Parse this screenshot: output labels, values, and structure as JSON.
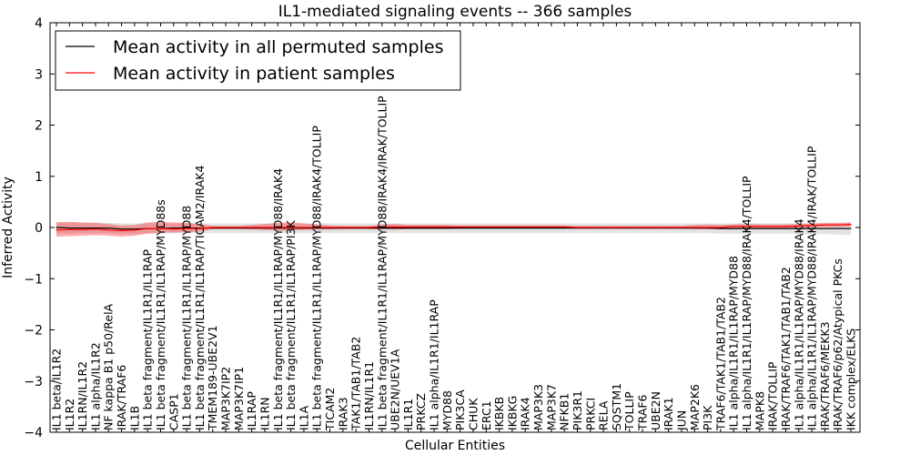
{
  "chart_data": {
    "type": "line",
    "title": "IL1-mediated signaling events -- 366 samples",
    "xlabel": "Cellular Entities",
    "ylabel": "Inferred Activity",
    "ylim": [
      -4,
      4
    ],
    "y_ticks": [
      -4,
      -3,
      -2,
      -1,
      0,
      1,
      2,
      3,
      4
    ],
    "grid": false,
    "legend_position": "top-left",
    "categories": [
      "IL1 beta/IL1R2",
      "IL1R2",
      "IL1RN/IL1R2",
      "IL1 alpha/IL1R2",
      "NF kappa B1 p50/RelA",
      "IRAK/TRAF6",
      "IL1B",
      "IL1 beta fragment/IL1R1/IL1RAP",
      "IL1 beta fragment/IL1R1/IL1RAP/MYD88s",
      "CASP1",
      "IL1 beta fragment/IL1R1/IL1RAP/MYD88",
      "IL1 beta fragment/IL1R1/IL1RAP/TICAM2/IRAK4",
      "TMEM189-UBE2V1",
      "MAP3K7IP2",
      "MAP3K7IP1",
      "IL1RAP",
      "IL1RN",
      "IL1 beta fragment/IL1R1/IL1RAP/MYD88/IRAK4",
      "IL1 beta fragment/IL1R1/IL1RAP/PI3K",
      "IL1A",
      "IL1 beta fragment/IL1R1/IL1RAP/MYD88/IRAK4/TOLLIP",
      "TICAM2",
      "IRAK3",
      "TAK1/TAB1/TAB2",
      "IL1RN/IL1R1",
      "IL1 beta fragment/IL1R1/IL1RAP/MYD88/IRAK4/IRAK/TOLLIP",
      "UBE2N/UEV1A",
      "IL1R1",
      "PRKCZ",
      "IL1 alpha/IL1R1/IL1RAP",
      "MYD88",
      "PIK3CA",
      "CHUK",
      "ERC1",
      "IKBKB",
      "IKBKG",
      "IRAK4",
      "MAP3K3",
      "MAP3K7",
      "NFKB1",
      "PIK3R1",
      "PRKCI",
      "RELA",
      "SQSTM1",
      "TOLLIP",
      "TRAF6",
      "UBE2N",
      "IRAK1",
      "JUN",
      "MAP2K6",
      "PI3K",
      "TRAF6/TAK1/TAB1/TAB2",
      "IL1 alpha/IL1R1/IL1RAP/MYD88",
      "IL1 alpha/IL1R1/IL1RAP/MYD88/IRAK4/TOLLIP",
      "MAPK8",
      "IRAK/TOLLIP",
      "IRAK/TRAF6/TAK1/TAB1/TAB2",
      "IL1 alpha/IL1R1/IL1RAP/MYD88/IRAK4",
      "IL1 alpha/IL1R1/IL1RAP/MYD88/IRAK4/IRAK/TOLLIP",
      "IRAK/TRAF6/MEKK3",
      "IRAK/TRAF6/p62/Atypical PKCs",
      "IKK complex/ELKS"
    ],
    "series": [
      {
        "name": "Mean activity in all permuted samples",
        "color": "#000000",
        "values": [
          0.0,
          -0.01,
          -0.01,
          -0.01,
          -0.01,
          -0.03,
          -0.03,
          -0.02,
          -0.02,
          -0.01,
          -0.01,
          -0.01,
          -0.01,
          -0.01,
          -0.01,
          -0.01,
          -0.01,
          -0.01,
          -0.01,
          -0.01,
          -0.01,
          -0.01,
          -0.01,
          -0.01,
          -0.01,
          -0.01,
          -0.01,
          -0.01,
          -0.01,
          -0.01,
          -0.01,
          -0.01,
          -0.01,
          -0.01,
          -0.01,
          -0.01,
          -0.01,
          -0.01,
          -0.01,
          -0.01,
          -0.01,
          -0.01,
          -0.01,
          -0.01,
          -0.01,
          -0.01,
          -0.01,
          -0.01,
          -0.01,
          -0.01,
          -0.01,
          -0.02,
          -0.02,
          -0.02,
          -0.02,
          -0.02,
          -0.02,
          -0.02,
          -0.02,
          -0.02,
          -0.02,
          -0.02
        ],
        "band_lower": [
          -0.12,
          -0.12,
          -0.11,
          -0.11,
          -0.11,
          -0.13,
          -0.13,
          -0.12,
          -0.12,
          -0.11,
          -0.11,
          -0.11,
          -0.11,
          -0.11,
          -0.11,
          -0.11,
          -0.11,
          -0.11,
          -0.11,
          -0.11,
          -0.11,
          -0.11,
          -0.11,
          -0.11,
          -0.11,
          -0.11,
          -0.11,
          -0.11,
          -0.11,
          -0.11,
          -0.11,
          -0.11,
          -0.11,
          -0.11,
          -0.11,
          -0.11,
          -0.11,
          -0.11,
          -0.11,
          -0.11,
          -0.11,
          -0.11,
          -0.11,
          -0.11,
          -0.11,
          -0.11,
          -0.11,
          -0.11,
          -0.11,
          -0.11,
          -0.11,
          -0.12,
          -0.12,
          -0.12,
          -0.12,
          -0.12,
          -0.12,
          -0.13,
          -0.13,
          -0.13,
          -0.14,
          -0.15
        ],
        "band_upper": [
          0.1,
          0.1,
          0.09,
          0.09,
          0.09,
          0.08,
          0.08,
          0.08,
          0.08,
          0.08,
          0.08,
          0.08,
          0.08,
          0.08,
          0.08,
          0.08,
          0.08,
          0.08,
          0.08,
          0.08,
          0.08,
          0.08,
          0.08,
          0.08,
          0.08,
          0.08,
          0.08,
          0.08,
          0.08,
          0.08,
          0.08,
          0.08,
          0.08,
          0.08,
          0.08,
          0.08,
          0.08,
          0.08,
          0.08,
          0.08,
          0.08,
          0.08,
          0.08,
          0.08,
          0.08,
          0.08,
          0.08,
          0.08,
          0.08,
          0.08,
          0.08,
          0.08,
          0.08,
          0.08,
          0.08,
          0.08,
          0.08,
          0.08,
          0.08,
          0.08,
          0.08,
          0.08
        ]
      },
      {
        "name": "Mean activity in patient samples",
        "color": "#ff0000",
        "values": [
          -0.05,
          -0.04,
          -0.04,
          -0.03,
          -0.05,
          -0.06,
          -0.05,
          -0.02,
          -0.02,
          -0.03,
          -0.02,
          -0.02,
          0.0,
          0.0,
          0.0,
          0.0,
          0.0,
          0.0,
          0.0,
          0.0,
          0.0,
          0.0,
          0.0,
          0.0,
          0.0,
          0.01,
          0.01,
          0.01,
          0.01,
          0.01,
          0.01,
          0.01,
          0.01,
          0.01,
          0.01,
          0.01,
          0.01,
          0.01,
          0.01,
          0.01,
          0.0,
          0.0,
          0.0,
          0.0,
          0.0,
          0.0,
          0.0,
          0.0,
          0.0,
          0.0,
          0.0,
          0.0,
          0.02,
          0.02,
          0.02,
          0.02,
          0.02,
          0.03,
          0.04,
          0.05,
          0.05,
          0.06
        ],
        "band_lower": [
          -0.18,
          -0.17,
          -0.16,
          -0.15,
          -0.16,
          -0.18,
          -0.16,
          -0.12,
          -0.1,
          -0.1,
          -0.09,
          -0.08,
          -0.03,
          -0.03,
          -0.03,
          -0.04,
          -0.05,
          -0.06,
          -0.06,
          -0.05,
          -0.04,
          -0.04,
          -0.03,
          -0.03,
          -0.03,
          -0.04,
          -0.04,
          -0.03,
          -0.03,
          -0.03,
          -0.03,
          -0.02,
          -0.02,
          -0.02,
          -0.02,
          -0.02,
          -0.02,
          -0.02,
          -0.02,
          -0.02,
          -0.02,
          -0.02,
          -0.02,
          -0.02,
          -0.02,
          -0.02,
          -0.02,
          -0.02,
          -0.02,
          -0.03,
          -0.03,
          -0.03,
          -0.03,
          -0.03,
          -0.02,
          -0.02,
          -0.02,
          -0.01,
          0.0,
          0.01,
          0.01,
          0.02
        ],
        "band_upper": [
          0.1,
          0.11,
          0.1,
          0.09,
          0.07,
          0.04,
          0.05,
          0.1,
          0.11,
          0.1,
          0.09,
          0.07,
          0.03,
          0.03,
          0.03,
          0.05,
          0.07,
          0.09,
          0.1,
          0.08,
          0.06,
          0.04,
          0.03,
          0.03,
          0.03,
          0.06,
          0.07,
          0.05,
          0.05,
          0.05,
          0.05,
          0.04,
          0.04,
          0.04,
          0.04,
          0.04,
          0.04,
          0.04,
          0.04,
          0.04,
          0.03,
          0.03,
          0.03,
          0.03,
          0.03,
          0.03,
          0.03,
          0.03,
          0.03,
          0.05,
          0.06,
          0.05,
          0.06,
          0.07,
          0.06,
          0.06,
          0.06,
          0.07,
          0.08,
          0.09,
          0.09,
          0.1
        ]
      }
    ]
  }
}
